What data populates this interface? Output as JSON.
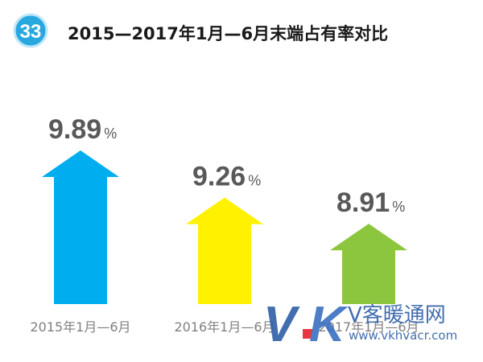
{
  "badge": {
    "number": "33",
    "color": "#29a8e0"
  },
  "chart_data": {
    "type": "bar",
    "title": "2015—2017年1月—6月末端占有率对比",
    "categories": [
      "2015年1月—6月",
      "2016年1月—6月",
      "2017年1月—6月"
    ],
    "values": [
      9.89,
      9.26,
      8.91
    ],
    "value_labels": [
      "9.89",
      "9.26",
      "8.91"
    ],
    "unit": "%",
    "bar_shape": "up-arrow",
    "colors": [
      "#00aeef",
      "#fff100",
      "#8cc63f"
    ],
    "value_color": "#595959",
    "category_color": "#808080",
    "grid": false,
    "legend": "none"
  },
  "watermark": {
    "logo": "VK",
    "name": "V客暖通网",
    "url": "www.vkhvacr.com",
    "colors": {
      "v": "#2e5fa8",
      "k": "#3a6fc0",
      "dot": "#e8222b"
    }
  }
}
